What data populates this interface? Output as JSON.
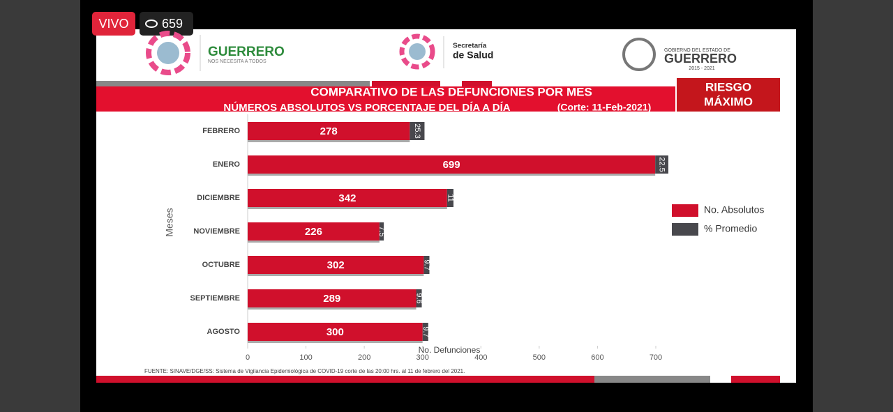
{
  "stream": {
    "live": "VIVO",
    "viewers": 659
  },
  "header": {
    "left_logo": {
      "name": "GUERRERO",
      "tagline": "NOS NECESITA A TODOS"
    },
    "center_logo": {
      "line1": "Secretaría",
      "line2": "de Salud"
    },
    "right_logo": {
      "line1": "GOBIERNO DEL ESTADO DE",
      "line2": "GUERRERO",
      "line3": "2015 - 2021"
    }
  },
  "badge": [
    "RIESGO",
    "MÁXIMO"
  ],
  "chart_data": {
    "type": "bar",
    "orientation": "horizontal",
    "stacked": true,
    "title": "COMPARATIVO DE LAS DEFUNCIONES POR MES",
    "subtitle": "NÚMEROS ABSOLUTOS VS PORCENTAJE DEL DÍA A DÍA",
    "note": "(Corte: 11-Feb-2021)",
    "categories": [
      "FEBRERO",
      "ENERO",
      "DICIEMBRE",
      "NOVIEMBRE",
      "OCTUBRE",
      "SEPTIEMBRE",
      "AGOSTO"
    ],
    "series": [
      {
        "name": "No. Absolutos",
        "color": "#d0102c",
        "values": [
          278,
          699,
          342,
          226,
          302,
          289,
          300
        ]
      },
      {
        "name": "% Promedio",
        "color": "#48484d",
        "values": [
          25.3,
          22.5,
          11,
          7.5,
          9.7,
          9.6,
          9.7
        ]
      }
    ],
    "xlim": [
      0,
      700
    ],
    "xticks": [
      0,
      100,
      200,
      300,
      400,
      500,
      600,
      700
    ],
    "xlabel": "No. Defunciones",
    "ylabel": "Meses",
    "legend": "right",
    "source": "FUENTE: SINAVE/DGE/SS: Sistema de Vigilancia Epidemiológica de COVID-19 corte de las 20:00 hrs. al 11 de  febrero del 2021."
  }
}
